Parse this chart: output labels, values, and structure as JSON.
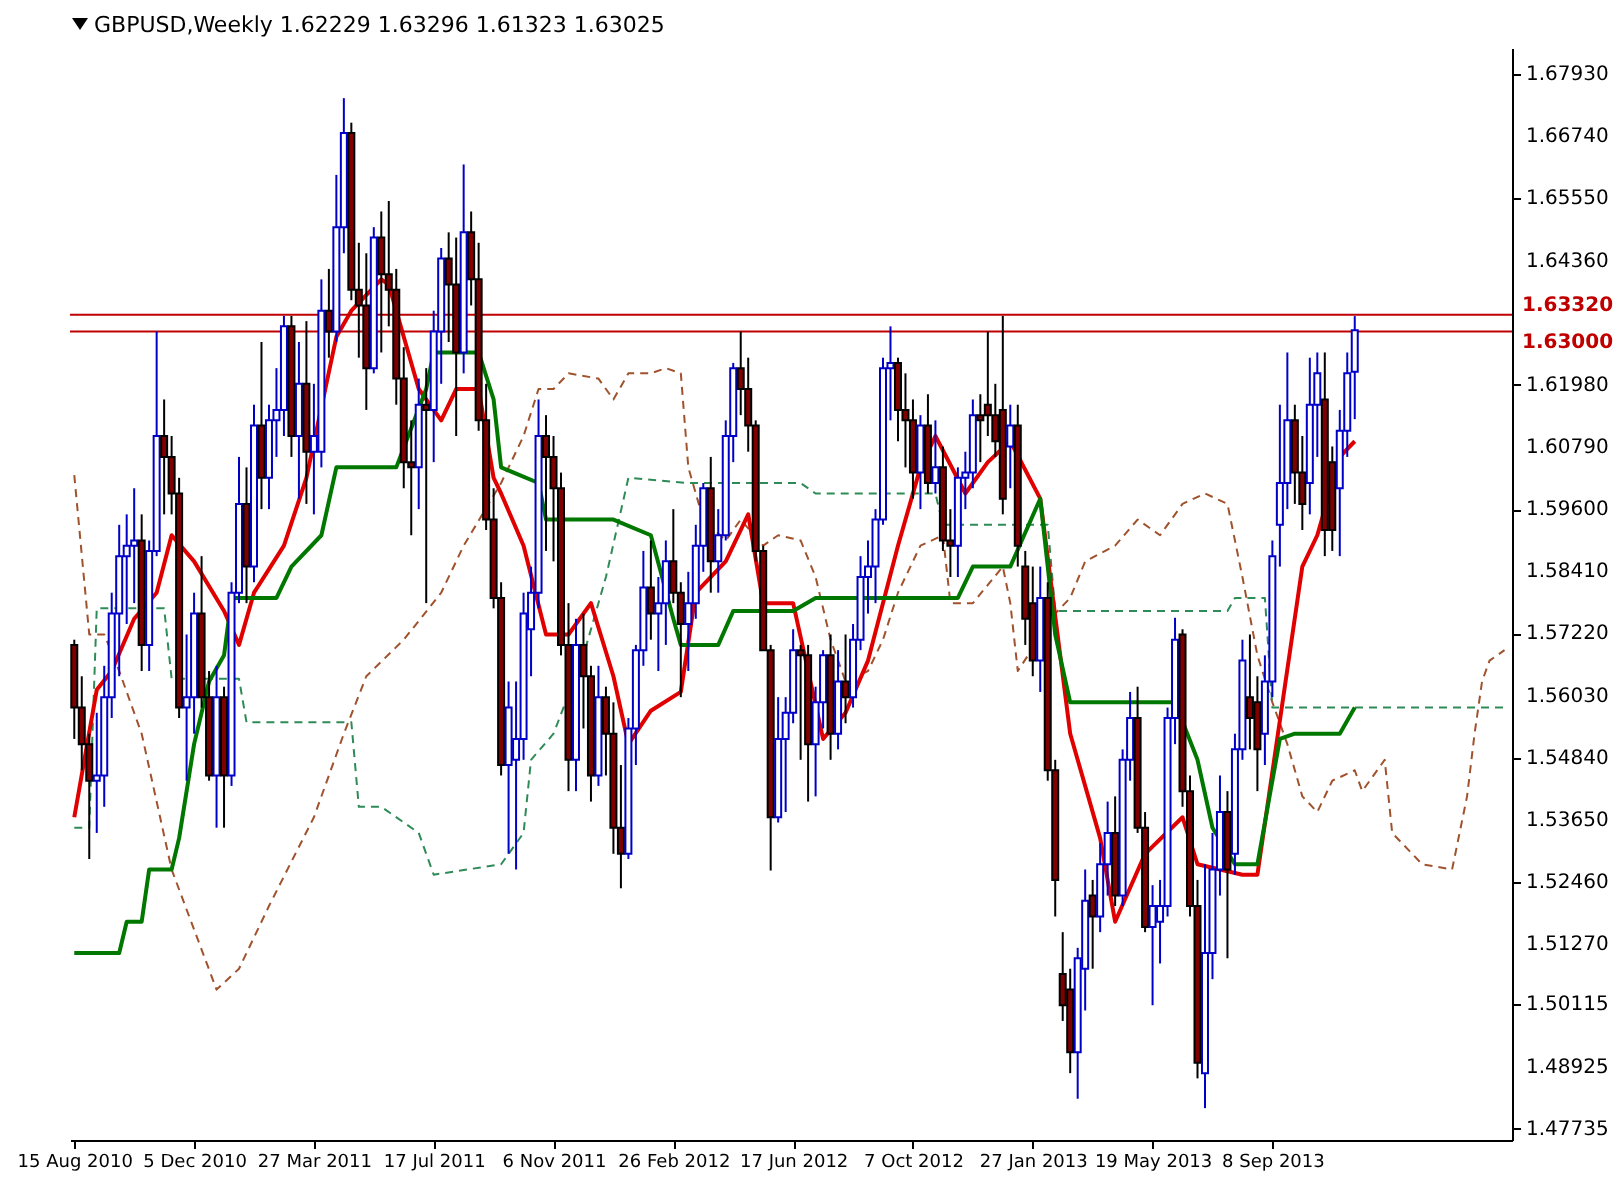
{
  "chart_data": {
    "type": "candlestick",
    "title": "GBPUSD,Weekly  1.62229 1.63296 1.61323 1.63025",
    "x": [
      "2010-08-15",
      "2010-08-22",
      "2010-08-29",
      "2010-09-05",
      "2010-09-12",
      "2010-09-19",
      "2010-09-26",
      "2010-10-03",
      "2010-10-10",
      "2010-10-17",
      "2010-10-24",
      "2010-10-31",
      "2010-11-07",
      "2010-11-14",
      "2010-11-21",
      "2010-11-28",
      "2010-12-05",
      "2010-12-12",
      "2010-12-19",
      "2010-12-26",
      "2011-01-02",
      "2011-01-09",
      "2011-01-16",
      "2011-01-23",
      "2011-01-30",
      "2011-02-06",
      "2011-02-13",
      "2011-02-20",
      "2011-02-27",
      "2011-03-06",
      "2011-03-13",
      "2011-03-20",
      "2011-03-27",
      "2011-04-03",
      "2011-04-10",
      "2011-04-17",
      "2011-04-24",
      "2011-05-01",
      "2011-05-08",
      "2011-05-15",
      "2011-05-22",
      "2011-05-29",
      "2011-06-05",
      "2011-06-12",
      "2011-06-19",
      "2011-06-26",
      "2011-07-03",
      "2011-07-10",
      "2011-07-17",
      "2011-07-24",
      "2011-07-31",
      "2011-08-07",
      "2011-08-14",
      "2011-08-21",
      "2011-08-28",
      "2011-09-04",
      "2011-09-11",
      "2011-09-18",
      "2011-09-25",
      "2011-10-02",
      "2011-10-09",
      "2011-10-16",
      "2011-10-23",
      "2011-10-30",
      "2011-11-06",
      "2011-11-13",
      "2011-11-20",
      "2011-11-27",
      "2011-12-04",
      "2011-12-11",
      "2011-12-18",
      "2011-12-25",
      "2012-01-01",
      "2012-01-08",
      "2012-01-15",
      "2012-01-22",
      "2012-01-29",
      "2012-02-05",
      "2012-02-12",
      "2012-02-19",
      "2012-02-26",
      "2012-03-04",
      "2012-03-11",
      "2012-03-18",
      "2012-03-25",
      "2012-04-01",
      "2012-04-08",
      "2012-04-15",
      "2012-04-22",
      "2012-04-29",
      "2012-05-06",
      "2012-05-13",
      "2012-05-20",
      "2012-05-27",
      "2012-06-03",
      "2012-06-10",
      "2012-06-17",
      "2012-06-24",
      "2012-07-01",
      "2012-07-08",
      "2012-07-15",
      "2012-07-22",
      "2012-07-29",
      "2012-08-05",
      "2012-08-12",
      "2012-08-19",
      "2012-08-26",
      "2012-09-02",
      "2012-09-09",
      "2012-09-16",
      "2012-09-23",
      "2012-09-30",
      "2012-10-07",
      "2012-10-14",
      "2012-10-21",
      "2012-10-28",
      "2012-11-04",
      "2012-11-11",
      "2012-11-18",
      "2012-11-25",
      "2012-12-02",
      "2012-12-09",
      "2012-12-16",
      "2012-12-23",
      "2012-12-30",
      "2013-01-06",
      "2013-01-13",
      "2013-01-20",
      "2013-01-27",
      "2013-02-03",
      "2013-02-10",
      "2013-02-17",
      "2013-02-24",
      "2013-03-03",
      "2013-03-10",
      "2013-03-17",
      "2013-03-24",
      "2013-03-31",
      "2013-04-07",
      "2013-04-14",
      "2013-04-21",
      "2013-04-28",
      "2013-05-05",
      "2013-05-12",
      "2013-05-19",
      "2013-05-26",
      "2013-06-02",
      "2013-06-09",
      "2013-06-16",
      "2013-06-23",
      "2013-06-30",
      "2013-07-07",
      "2013-07-14",
      "2013-07-21",
      "2013-07-28",
      "2013-08-04",
      "2013-08-11",
      "2013-08-18",
      "2013-08-25",
      "2013-09-01",
      "2013-09-08",
      "2013-09-15",
      "2013-09-22",
      "2013-09-29",
      "2013-10-06",
      "2013-10-13",
      "2013-10-20",
      "2013-10-27",
      "2013-11-03",
      "2013-11-10",
      "2013-11-17",
      "2013-11-24"
    ],
    "ohlc": [
      [
        1.57,
        1.571,
        1.552,
        1.558
      ],
      [
        1.558,
        1.564,
        1.546,
        1.551
      ],
      [
        1.551,
        1.553,
        1.529,
        1.544
      ],
      [
        1.544,
        1.557,
        1.534,
        1.545
      ],
      [
        1.545,
        1.566,
        1.539,
        1.56
      ],
      [
        1.56,
        1.58,
        1.556,
        1.576
      ],
      [
        1.576,
        1.593,
        1.564,
        1.587
      ],
      [
        1.587,
        1.595,
        1.574,
        1.589
      ],
      [
        1.589,
        1.6,
        1.578,
        1.59
      ],
      [
        1.59,
        1.595,
        1.565,
        1.57
      ],
      [
        1.57,
        1.59,
        1.565,
        1.588
      ],
      [
        1.588,
        1.63,
        1.587,
        1.61
      ],
      [
        1.61,
        1.617,
        1.595,
        1.606
      ],
      [
        1.606,
        1.61,
        1.595,
        1.599
      ],
      [
        1.599,
        1.602,
        1.556,
        1.558
      ],
      [
        1.558,
        1.572,
        1.544,
        1.56
      ],
      [
        1.56,
        1.58,
        1.553,
        1.576
      ],
      [
        1.576,
        1.587,
        1.558,
        1.56
      ],
      [
        1.56,
        1.565,
        1.544,
        1.545
      ],
      [
        1.545,
        1.566,
        1.535,
        1.56
      ],
      [
        1.56,
        1.562,
        1.535,
        1.545
      ],
      [
        1.545,
        1.582,
        1.543,
        1.58
      ],
      [
        1.58,
        1.606,
        1.578,
        1.597
      ],
      [
        1.597,
        1.604,
        1.578,
        1.585
      ],
      [
        1.585,
        1.616,
        1.582,
        1.612
      ],
      [
        1.612,
        1.628,
        1.596,
        1.602
      ],
      [
        1.602,
        1.616,
        1.596,
        1.613
      ],
      [
        1.613,
        1.623,
        1.606,
        1.615
      ],
      [
        1.615,
        1.633,
        1.61,
        1.631
      ],
      [
        1.631,
        1.633,
        1.606,
        1.61
      ],
      [
        1.61,
        1.628,
        1.598,
        1.62
      ],
      [
        1.62,
        1.632,
        1.597,
        1.607
      ],
      [
        1.607,
        1.62,
        1.595,
        1.61
      ],
      [
        1.607,
        1.64,
        1.604,
        1.634
      ],
      [
        1.634,
        1.642,
        1.625,
        1.63
      ],
      [
        1.63,
        1.66,
        1.628,
        1.65
      ],
      [
        1.65,
        1.6747,
        1.645,
        1.668
      ],
      [
        1.668,
        1.67,
        1.636,
        1.638
      ],
      [
        1.638,
        1.647,
        1.625,
        1.635
      ],
      [
        1.635,
        1.645,
        1.615,
        1.623
      ],
      [
        1.623,
        1.65,
        1.622,
        1.648
      ],
      [
        1.648,
        1.653,
        1.626,
        1.641
      ],
      [
        1.641,
        1.655,
        1.631,
        1.638
      ],
      [
        1.638,
        1.642,
        1.616,
        1.621
      ],
      [
        1.621,
        1.627,
        1.6,
        1.605
      ],
      [
        1.605,
        1.613,
        1.591,
        1.604
      ],
      [
        1.604,
        1.621,
        1.596,
        1.616
      ],
      [
        1.616,
        1.623,
        1.578,
        1.615
      ],
      [
        1.615,
        1.634,
        1.605,
        1.63
      ],
      [
        1.63,
        1.646,
        1.62,
        1.644
      ],
      [
        1.644,
        1.649,
        1.628,
        1.639
      ],
      [
        1.639,
        1.648,
        1.61,
        1.626
      ],
      [
        1.626,
        1.662,
        1.622,
        1.649
      ],
      [
        1.649,
        1.653,
        1.635,
        1.64
      ],
      [
        1.64,
        1.647,
        1.611,
        1.613
      ],
      [
        1.613,
        1.62,
        1.592,
        1.594
      ],
      [
        1.594,
        1.6,
        1.577,
        1.579
      ],
      [
        1.579,
        1.582,
        1.545,
        1.547
      ],
      [
        1.547,
        1.563,
        1.53,
        1.558
      ],
      [
        1.548,
        1.563,
        1.527,
        1.552
      ],
      [
        1.552,
        1.58,
        1.548,
        1.576
      ],
      [
        1.573,
        1.585,
        1.564,
        1.58
      ],
      [
        1.58,
        1.617,
        1.577,
        1.61
      ],
      [
        1.61,
        1.614,
        1.588,
        1.606
      ],
      [
        1.606,
        1.61,
        1.586,
        1.6
      ],
      [
        1.6,
        1.603,
        1.568,
        1.57
      ],
      [
        1.57,
        1.578,
        1.542,
        1.548
      ],
      [
        1.548,
        1.575,
        1.542,
        1.57
      ],
      [
        1.57,
        1.576,
        1.554,
        1.564
      ],
      [
        1.564,
        1.566,
        1.54,
        1.545
      ],
      [
        1.545,
        1.566,
        1.543,
        1.56
      ],
      [
        1.56,
        1.562,
        1.545,
        1.553
      ],
      [
        1.553,
        1.559,
        1.53,
        1.535
      ],
      [
        1.535,
        1.547,
        1.5234,
        1.53
      ],
      [
        1.53,
        1.556,
        1.529,
        1.554
      ],
      [
        1.554,
        1.57,
        1.547,
        1.569
      ],
      [
        1.569,
        1.588,
        1.566,
        1.581
      ],
      [
        1.581,
        1.59,
        1.571,
        1.576
      ],
      [
        1.576,
        1.583,
        1.565,
        1.578
      ],
      [
        1.578,
        1.59,
        1.57,
        1.586
      ],
      [
        1.586,
        1.596,
        1.578,
        1.58
      ],
      [
        1.58,
        1.582,
        1.56,
        1.574
      ],
      [
        1.574,
        1.584,
        1.565,
        1.578
      ],
      [
        1.578,
        1.593,
        1.575,
        1.589
      ],
      [
        1.589,
        1.601,
        1.584,
        1.6
      ],
      [
        1.6,
        1.606,
        1.58,
        1.586
      ],
      [
        1.586,
        1.596,
        1.58,
        1.591
      ],
      [
        1.591,
        1.613,
        1.59,
        1.61
      ],
      [
        1.61,
        1.624,
        1.605,
        1.623
      ],
      [
        1.623,
        1.63,
        1.614,
        1.619
      ],
      [
        1.619,
        1.625,
        1.607,
        1.612
      ],
      [
        1.612,
        1.613,
        1.586,
        1.588
      ],
      [
        1.588,
        1.589,
        1.569,
        1.569
      ],
      [
        1.569,
        1.57,
        1.5268,
        1.537
      ],
      [
        1.537,
        1.56,
        1.536,
        1.552
      ],
      [
        1.552,
        1.56,
        1.538,
        1.557
      ],
      [
        1.557,
        1.573,
        1.555,
        1.569
      ],
      [
        1.569,
        1.57,
        1.548,
        1.568
      ],
      [
        1.568,
        1.57,
        1.54,
        1.551
      ],
      [
        1.551,
        1.562,
        1.541,
        1.559
      ],
      [
        1.559,
        1.569,
        1.554,
        1.568
      ],
      [
        1.568,
        1.572,
        1.548,
        1.553
      ],
      [
        1.553,
        1.569,
        1.55,
        1.563
      ],
      [
        1.563,
        1.572,
        1.555,
        1.56
      ],
      [
        1.56,
        1.574,
        1.558,
        1.571
      ],
      [
        1.571,
        1.587,
        1.569,
        1.583
      ],
      [
        1.583,
        1.59,
        1.576,
        1.585
      ],
      [
        1.585,
        1.596,
        1.578,
        1.594
      ],
      [
        1.594,
        1.625,
        1.593,
        1.623
      ],
      [
        1.623,
        1.631,
        1.613,
        1.624
      ],
      [
        1.624,
        1.625,
        1.609,
        1.615
      ],
      [
        1.615,
        1.622,
        1.604,
        1.613
      ],
      [
        1.613,
        1.617,
        1.598,
        1.603
      ],
      [
        1.603,
        1.614,
        1.596,
        1.612
      ],
      [
        1.612,
        1.618,
        1.599,
        1.601
      ],
      [
        1.601,
        1.613,
        1.599,
        1.604
      ],
      [
        1.604,
        1.608,
        1.588,
        1.59
      ],
      [
        1.59,
        1.596,
        1.583,
        1.589
      ],
      [
        1.589,
        1.604,
        1.583,
        1.602
      ],
      [
        1.602,
        1.607,
        1.596,
        1.603
      ],
      [
        1.603,
        1.617,
        1.6,
        1.614
      ],
      [
        1.614,
        1.618,
        1.605,
        1.613
      ],
      [
        1.616,
        1.63,
        1.61,
        1.614
      ],
      [
        1.614,
        1.62,
        1.606,
        1.609
      ],
      [
        1.615,
        1.633,
        1.595,
        1.598
      ],
      [
        1.608,
        1.616,
        1.6,
        1.612
      ],
      [
        1.612,
        1.616,
        1.585,
        1.589
      ],
      [
        1.585,
        1.588,
        1.57,
        1.575
      ],
      [
        1.578,
        1.585,
        1.564,
        1.567
      ],
      [
        1.567,
        1.585,
        1.561,
        1.579
      ],
      [
        1.579,
        1.582,
        1.544,
        1.546
      ],
      [
        1.546,
        1.548,
        1.518,
        1.525
      ],
      [
        1.507,
        1.515,
        1.498,
        1.501
      ],
      [
        1.504,
        1.508,
        1.488,
        1.492
      ],
      [
        1.492,
        1.512,
        1.4831,
        1.51
      ],
      [
        1.508,
        1.527,
        1.5,
        1.521
      ],
      [
        1.522,
        1.525,
        1.508,
        1.518
      ],
      [
        1.518,
        1.532,
        1.515,
        1.528
      ],
      [
        1.528,
        1.54,
        1.522,
        1.534
      ],
      [
        1.534,
        1.541,
        1.52,
        1.522
      ],
      [
        1.522,
        1.55,
        1.52,
        1.548
      ],
      [
        1.548,
        1.561,
        1.544,
        1.556
      ],
      [
        1.556,
        1.562,
        1.534,
        1.535
      ],
      [
        1.535,
        1.538,
        1.515,
        1.516
      ],
      [
        1.516,
        1.524,
        1.501,
        1.52
      ],
      [
        1.517,
        1.525,
        1.509,
        1.52
      ],
      [
        1.52,
        1.558,
        1.518,
        1.556
      ],
      [
        1.556,
        1.5752,
        1.551,
        1.571
      ],
      [
        1.572,
        1.573,
        1.539,
        1.542
      ],
      [
        1.542,
        1.545,
        1.518,
        1.52
      ],
      [
        1.52,
        1.525,
        1.487,
        1.49
      ],
      [
        1.488,
        1.528,
        1.4813,
        1.511
      ],
      [
        1.511,
        1.534,
        1.506,
        1.527
      ],
      [
        1.527,
        1.545,
        1.522,
        1.538
      ],
      [
        1.538,
        1.542,
        1.51,
        1.527
      ],
      [
        1.53,
        1.553,
        1.526,
        1.55
      ],
      [
        1.55,
        1.571,
        1.548,
        1.567
      ],
      [
        1.56,
        1.572,
        1.55,
        1.556
      ],
      [
        1.559,
        1.564,
        1.542,
        1.55
      ],
      [
        1.553,
        1.568,
        1.547,
        1.563
      ],
      [
        1.563,
        1.59,
        1.56,
        1.587
      ],
      [
        1.593,
        1.616,
        1.585,
        1.601
      ],
      [
        1.601,
        1.626,
        1.596,
        1.613
      ],
      [
        1.613,
        1.616,
        1.597,
        1.603
      ],
      [
        1.603,
        1.61,
        1.592,
        1.597
      ],
      [
        1.601,
        1.625,
        1.595,
        1.616
      ],
      [
        1.616,
        1.626,
        1.606,
        1.622
      ],
      [
        1.617,
        1.626,
        1.587,
        1.592
      ],
      [
        1.605,
        1.608,
        1.588,
        1.592
      ],
      [
        1.6,
        1.615,
        1.587,
        1.611
      ],
      [
        1.611,
        1.626,
        1.606,
        1.622
      ],
      [
        1.62229,
        1.63296,
        1.61323,
        1.63025
      ]
    ],
    "series": [
      {
        "type": "line",
        "color": "#a0522d",
        "line_style": "dashed",
        "x": [
          "2010-08-15",
          "2010-08-29",
          "2010-09-12",
          "2010-09-26",
          "2010-10-17",
          "2010-11-14",
          "2010-12-26",
          "2011-01-16",
          "2011-02-13",
          "2011-03-27",
          "2011-04-24",
          "2011-05-15",
          "2011-06-19",
          "2011-07-24",
          "2011-08-14",
          "2011-09-18",
          "2011-10-09",
          "2011-10-23",
          "2011-11-06",
          "2011-11-20",
          "2011-12-18",
          "2012-01-01",
          "2012-01-15",
          "2012-02-05",
          "2012-02-19",
          "2012-03-04",
          "2012-03-11",
          "2012-03-25",
          "2012-04-15",
          "2012-04-29",
          "2012-05-20",
          "2012-06-03",
          "2012-06-24",
          "2012-07-08",
          "2012-07-22",
          "2012-08-05",
          "2012-08-26",
          "2012-09-09",
          "2012-09-23",
          "2012-10-14",
          "2012-11-04",
          "2012-11-11",
          "2012-12-02",
          "2012-12-30",
          "2013-01-06",
          "2013-01-13",
          "2013-02-17",
          "2013-03-03",
          "2013-03-17",
          "2013-04-14",
          "2013-05-05",
          "2013-05-26",
          "2013-06-16",
          "2013-07-07",
          "2013-07-28",
          "2013-08-11",
          "2013-08-25",
          "2013-09-08",
          "2013-09-22",
          "2013-10-06",
          "2013-10-20",
          "2013-11-03",
          "2013-11-24",
          "2013-12-01",
          "2013-12-22",
          "2013-12-29",
          "2014-01-12",
          "2014-01-26",
          "2014-02-23",
          "2014-03-09",
          "2014-03-16",
          "2014-03-23",
          "2014-03-30",
          "2014-04-13"
        ],
        "values": [
          1.6025,
          1.572,
          1.572,
          1.565,
          1.553,
          1.527,
          1.504,
          1.508,
          1.52,
          1.537,
          1.553,
          1.564,
          1.571,
          1.58,
          1.589,
          1.601,
          1.61,
          1.619,
          1.619,
          1.622,
          1.621,
          1.617,
          1.622,
          1.622,
          1.623,
          1.622,
          1.604,
          1.594,
          1.59,
          1.594,
          1.589,
          1.591,
          1.59,
          1.583,
          1.571,
          1.563,
          1.565,
          1.571,
          1.58,
          1.589,
          1.591,
          1.578,
          1.578,
          1.585,
          1.578,
          1.565,
          1.576,
          1.579,
          1.586,
          1.589,
          1.594,
          1.591,
          1.597,
          1.599,
          1.597,
          1.583,
          1.568,
          1.559,
          1.551,
          1.541,
          1.538,
          1.544,
          1.546,
          1.542,
          1.548,
          1.534,
          1.531,
          1.528,
          1.527,
          1.541,
          1.553,
          1.563,
          1.567,
          1.569
        ]
      },
      {
        "type": "line",
        "color": "#2e8b57",
        "line_style": "dashed",
        "x": [
          "2010-08-15",
          "2010-08-29",
          "2010-09-05",
          "2010-11-07",
          "2010-11-14",
          "2011-01-16",
          "2011-01-23",
          "2011-05-01",
          "2011-05-08",
          "2011-05-29",
          "2011-07-03",
          "2011-07-17",
          "2011-09-18",
          "2011-10-09",
          "2011-10-16",
          "2011-11-06",
          "2011-12-04",
          "2011-12-25",
          "2012-01-15",
          "2012-03-11",
          "2012-06-24",
          "2012-07-08",
          "2012-10-28",
          "2012-11-04",
          "2013-02-10",
          "2013-02-17",
          "2013-07-28",
          "2013-08-04",
          "2013-09-01",
          "2013-09-08",
          "2014-04-13"
        ],
        "values": [
          1.535,
          1.535,
          1.577,
          1.577,
          1.5635,
          1.5635,
          1.5552,
          1.5552,
          1.539,
          1.539,
          1.534,
          1.526,
          1.528,
          1.534,
          1.548,
          1.553,
          1.568,
          1.583,
          1.602,
          1.601,
          1.601,
          1.599,
          1.599,
          1.593,
          1.593,
          1.5765,
          1.5765,
          1.579,
          1.579,
          1.558,
          1.558
        ]
      },
      {
        "type": "line",
        "color": "#e00000",
        "line_style": "solid",
        "x": [
          "2010-08-15",
          "2010-09-05",
          "2010-09-19",
          "2010-10-10",
          "2010-10-31",
          "2010-11-14",
          "2010-12-05",
          "2011-01-02",
          "2011-01-16",
          "2011-01-30",
          "2011-02-27",
          "2011-03-20",
          "2011-04-17",
          "2011-05-01",
          "2011-05-29",
          "2011-06-05",
          "2011-07-03",
          "2011-07-24",
          "2011-08-07",
          "2011-08-28",
          "2011-09-11",
          "2011-09-18",
          "2011-10-09",
          "2011-10-30",
          "2011-11-20",
          "2011-12-11",
          "2012-01-01",
          "2012-01-15",
          "2012-02-05",
          "2012-03-04",
          "2012-03-18",
          "2012-04-15",
          "2012-05-06",
          "2012-05-20",
          "2012-06-17",
          "2012-07-15",
          "2012-08-05",
          "2012-08-26",
          "2012-09-23",
          "2012-10-14",
          "2012-10-28",
          "2012-11-25",
          "2012-12-16",
          "2013-01-06",
          "2013-02-03",
          "2013-03-03",
          "2013-03-31",
          "2013-04-14",
          "2013-05-12",
          "2013-06-16",
          "2013-06-30",
          "2013-08-11",
          "2013-08-25",
          "2013-10-06",
          "2013-10-20",
          "2013-11-10",
          "2013-11-24"
        ],
        "values": [
          1.537,
          1.5614,
          1.565,
          1.575,
          1.58,
          1.591,
          1.586,
          1.5765,
          1.57,
          1.58,
          1.589,
          1.602,
          1.629,
          1.634,
          1.64,
          1.639,
          1.619,
          1.613,
          1.619,
          1.619,
          1.602,
          1.599,
          1.589,
          1.572,
          1.572,
          1.578,
          1.564,
          1.551,
          1.5574,
          1.561,
          1.58,
          1.586,
          1.595,
          1.578,
          1.578,
          1.552,
          1.557,
          1.567,
          1.589,
          1.604,
          1.61,
          1.599,
          1.605,
          1.609,
          1.598,
          1.553,
          1.533,
          1.517,
          1.53,
          1.537,
          1.528,
          1.526,
          1.526,
          1.585,
          1.591,
          1.606,
          1.609
        ]
      },
      {
        "type": "line",
        "color": "#007800",
        "line_style": "solid",
        "x": [
          "2010-08-15",
          "2010-09-26",
          "2010-10-03",
          "2010-10-17",
          "2010-10-24",
          "2010-11-14",
          "2010-11-21",
          "2010-12-05",
          "2010-12-19",
          "2011-01-02",
          "2011-01-09",
          "2011-02-20",
          "2011-03-06",
          "2011-04-03",
          "2011-04-17",
          "2011-06-12",
          "2011-07-10",
          "2011-07-17",
          "2011-08-28",
          "2011-09-11",
          "2011-09-18",
          "2011-10-23",
          "2011-10-30",
          "2012-01-01",
          "2012-02-05",
          "2012-02-26",
          "2012-03-04",
          "2012-04-08",
          "2012-04-22",
          "2012-06-17",
          "2012-07-08",
          "2012-11-18",
          "2012-12-02",
          "2013-01-06",
          "2013-02-03",
          "2013-02-17",
          "2013-03-03",
          "2013-06-09",
          "2013-06-30",
          "2013-07-14",
          "2013-08-04",
          "2013-08-25",
          "2013-09-15",
          "2013-09-29",
          "2013-11-10",
          "2013-11-24"
        ],
        "values": [
          1.511,
          1.511,
          1.517,
          1.517,
          1.527,
          1.527,
          1.533,
          1.551,
          1.563,
          1.568,
          1.579,
          1.579,
          1.585,
          1.591,
          1.604,
          1.604,
          1.619,
          1.626,
          1.626,
          1.617,
          1.604,
          1.601,
          1.594,
          1.594,
          1.591,
          1.575,
          1.57,
          1.57,
          1.5765,
          1.5765,
          1.579,
          1.579,
          1.585,
          1.585,
          1.598,
          1.572,
          1.559,
          1.559,
          1.548,
          1.535,
          1.528,
          1.528,
          1.552,
          1.553,
          1.553,
          1.558
        ]
      }
    ],
    "xlim": [
      "2010-08-11",
      "2014-04-20"
    ],
    "xticks": [
      {
        "value": "2010-08-15",
        "label": "15 Aug 2010"
      },
      {
        "value": "2010-12-05",
        "label": "5 Dec 2010"
      },
      {
        "value": "2011-03-27",
        "label": "27 Mar 2011"
      },
      {
        "value": "2011-07-17",
        "label": "17 Jul 2011"
      },
      {
        "value": "2011-11-06",
        "label": "6 Nov 2011"
      },
      {
        "value": "2012-02-26",
        "label": "26 Feb 2012"
      },
      {
        "value": "2012-06-17",
        "label": "17 Jun 2012"
      },
      {
        "value": "2012-10-07",
        "label": "7 Oct 2012"
      },
      {
        "value": "2013-01-27",
        "label": "27 Jan 2013"
      },
      {
        "value": "2013-05-19",
        "label": "19 May 2013"
      },
      {
        "value": "2013-09-08",
        "label": "8 Sep 2013"
      }
    ],
    "ylim": [
      1.4752,
      1.6843
    ],
    "yticks": [
      1.47735,
      1.48925,
      1.50115,
      {
        "value": 1.5127,
        "label": "1.51270"
      },
      {
        "value": 1.5246,
        "label": "1.52460"
      },
      {
        "value": 1.5365,
        "label": "1.53650"
      },
      {
        "value": 1.5484,
        "label": "1.54840"
      },
      {
        "value": 1.5603,
        "label": "1.56030"
      },
      {
        "value": 1.5722,
        "label": "1.57220"
      },
      {
        "value": 1.5841,
        "label": "1.58410"
      },
      {
        "value": 1.596,
        "label": "1.59600"
      },
      {
        "value": 1.6079,
        "label": "1.60790"
      },
      {
        "value": 1.6198,
        "label": "1.61980"
      },
      {
        "value": 1.6436,
        "label": "1.64360"
      },
      {
        "value": 1.6555,
        "label": "1.65550"
      },
      {
        "value": 1.6674,
        "label": "1.66740"
      },
      {
        "value": 1.6793,
        "label": "1.67930"
      }
    ],
    "ref_lines": [
      {
        "axis": "y",
        "value": 1.6332,
        "label": "1.63320",
        "color": "#c00000"
      },
      {
        "axis": "y",
        "value": 1.63,
        "label": "1.63000",
        "color": "#c00000"
      }
    ]
  }
}
